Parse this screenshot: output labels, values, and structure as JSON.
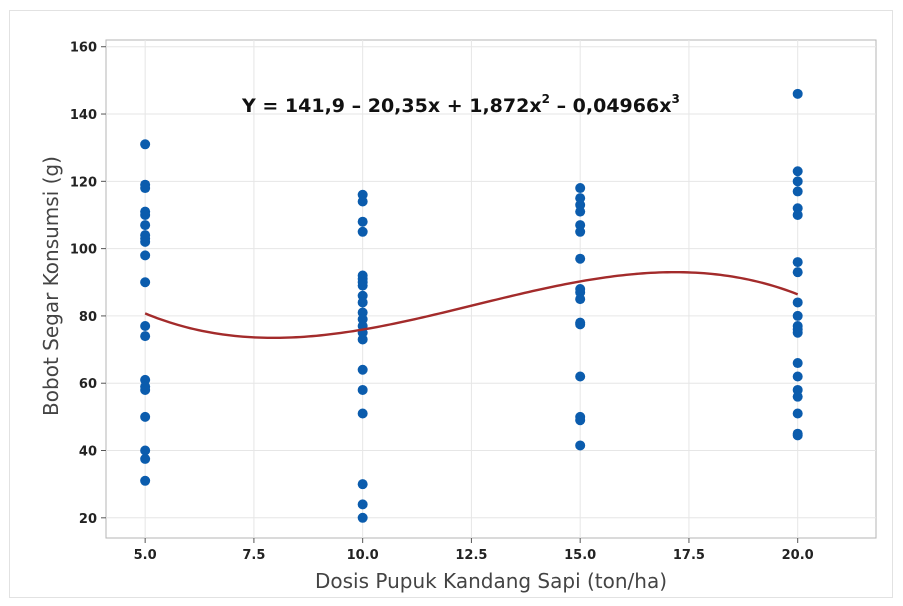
{
  "chart_data": {
    "type": "scatter",
    "xlabel": "Dosis Pupuk Kandang Sapi (ton/ha)",
    "ylabel": "Bobot Segar Konsumsi (g)",
    "xlim": [
      4.1,
      21.8
    ],
    "ylim": [
      14,
      162
    ],
    "xticks": [
      "5.0",
      "7.5",
      "10.0",
      "12.5",
      "15.0",
      "17.5",
      "20.0"
    ],
    "yticks": [
      "20",
      "40",
      "60",
      "80",
      "100",
      "120",
      "140",
      "160"
    ],
    "grid": true,
    "colors": {
      "points": "#0b5cad",
      "fit": "#a32b2b"
    },
    "equation": {
      "main": "Y = 141,9 – 20,35x + 1,872x",
      "sup1": "2",
      "mid": " – 0,04966x",
      "sup2": "3"
    },
    "fit": {
      "intercept": 141.9,
      "b1": -20.35,
      "b2": 1.872,
      "b3": -0.04966,
      "x_range": [
        5,
        20
      ]
    },
    "points": [
      {
        "x": 5,
        "y": 131
      },
      {
        "x": 5,
        "y": 119
      },
      {
        "x": 5,
        "y": 118
      },
      {
        "x": 5,
        "y": 111
      },
      {
        "x": 5,
        "y": 110
      },
      {
        "x": 5,
        "y": 107
      },
      {
        "x": 5,
        "y": 104
      },
      {
        "x": 5,
        "y": 103
      },
      {
        "x": 5,
        "y": 102
      },
      {
        "x": 5,
        "y": 98
      },
      {
        "x": 5,
        "y": 90
      },
      {
        "x": 5,
        "y": 77
      },
      {
        "x": 5,
        "y": 74
      },
      {
        "x": 5,
        "y": 61
      },
      {
        "x": 5,
        "y": 59
      },
      {
        "x": 5,
        "y": 58
      },
      {
        "x": 5,
        "y": 50
      },
      {
        "x": 5,
        "y": 40
      },
      {
        "x": 5,
        "y": 37.5
      },
      {
        "x": 5,
        "y": 31
      },
      {
        "x": 10,
        "y": 116
      },
      {
        "x": 10,
        "y": 114
      },
      {
        "x": 10,
        "y": 108
      },
      {
        "x": 10,
        "y": 105
      },
      {
        "x": 10,
        "y": 92
      },
      {
        "x": 10,
        "y": 91
      },
      {
        "x": 10,
        "y": 90
      },
      {
        "x": 10,
        "y": 89
      },
      {
        "x": 10,
        "y": 86
      },
      {
        "x": 10,
        "y": 84
      },
      {
        "x": 10,
        "y": 81
      },
      {
        "x": 10,
        "y": 79
      },
      {
        "x": 10,
        "y": 77
      },
      {
        "x": 10,
        "y": 75
      },
      {
        "x": 10,
        "y": 73
      },
      {
        "x": 10,
        "y": 64
      },
      {
        "x": 10,
        "y": 58
      },
      {
        "x": 10,
        "y": 51
      },
      {
        "x": 10,
        "y": 30
      },
      {
        "x": 10,
        "y": 24
      },
      {
        "x": 10,
        "y": 20
      },
      {
        "x": 15,
        "y": 118
      },
      {
        "x": 15,
        "y": 115
      },
      {
        "x": 15,
        "y": 113
      },
      {
        "x": 15,
        "y": 111
      },
      {
        "x": 15,
        "y": 107
      },
      {
        "x": 15,
        "y": 105
      },
      {
        "x": 15,
        "y": 97
      },
      {
        "x": 15,
        "y": 88
      },
      {
        "x": 15,
        "y": 87
      },
      {
        "x": 15,
        "y": 85
      },
      {
        "x": 15,
        "y": 78
      },
      {
        "x": 15,
        "y": 77.5
      },
      {
        "x": 15,
        "y": 62
      },
      {
        "x": 15,
        "y": 50
      },
      {
        "x": 15,
        "y": 49
      },
      {
        "x": 15,
        "y": 41.5
      },
      {
        "x": 20,
        "y": 146
      },
      {
        "x": 20,
        "y": 123
      },
      {
        "x": 20,
        "y": 120
      },
      {
        "x": 20,
        "y": 117
      },
      {
        "x": 20,
        "y": 112
      },
      {
        "x": 20,
        "y": 110
      },
      {
        "x": 20,
        "y": 96
      },
      {
        "x": 20,
        "y": 93
      },
      {
        "x": 20,
        "y": 84
      },
      {
        "x": 20,
        "y": 80
      },
      {
        "x": 20,
        "y": 77
      },
      {
        "x": 20,
        "y": 76
      },
      {
        "x": 20,
        "y": 75
      },
      {
        "x": 20,
        "y": 66
      },
      {
        "x": 20,
        "y": 62
      },
      {
        "x": 20,
        "y": 58
      },
      {
        "x": 20,
        "y": 56
      },
      {
        "x": 20,
        "y": 51
      },
      {
        "x": 20,
        "y": 45
      },
      {
        "x": 20,
        "y": 44.5
      }
    ]
  }
}
